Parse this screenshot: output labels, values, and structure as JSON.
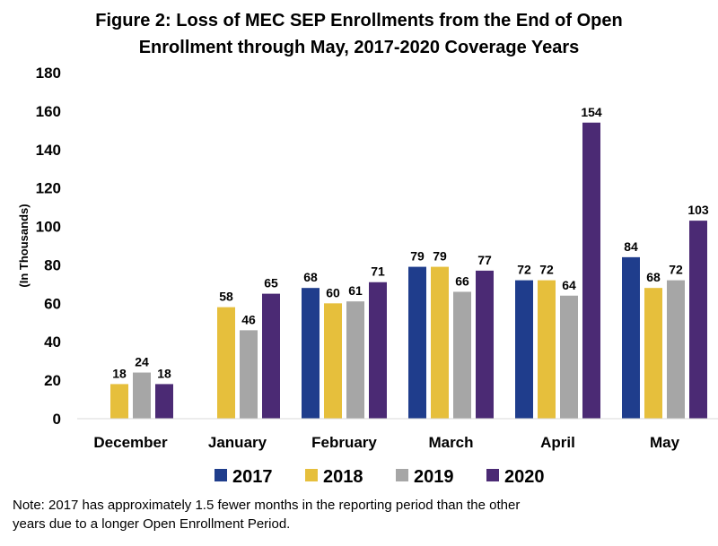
{
  "chart_data": {
    "type": "bar",
    "title_lines": [
      "Figure 2: Loss of MEC SEP Enrollments from the End of Open",
      "Enrollment through May, 2017-2020 Coverage Years"
    ],
    "ylabel": "(In Thousands)",
    "xlabel": "",
    "ylim": [
      0,
      180
    ],
    "yticks": [
      0,
      20,
      40,
      60,
      80,
      100,
      120,
      140,
      160,
      180
    ],
    "grid": false,
    "legend_position": "bottom",
    "categories": [
      "December",
      "January",
      "February",
      "March",
      "April",
      "May"
    ],
    "series": [
      {
        "name": "2017",
        "color": "#1f3d8c",
        "values": [
          null,
          null,
          68,
          79,
          72,
          84
        ]
      },
      {
        "name": "2018",
        "color": "#e6bf3c",
        "values": [
          18,
          58,
          60,
          79,
          72,
          68
        ]
      },
      {
        "name": "2019",
        "color": "#a6a6a6",
        "values": [
          24,
          46,
          61,
          66,
          64,
          72
        ]
      },
      {
        "name": "2020",
        "color": "#4b2a74",
        "values": [
          18,
          65,
          71,
          77,
          154,
          103
        ]
      }
    ]
  },
  "note": {
    "line1": "Note: 2017 has approximately 1.5 fewer months in the reporting period than the other",
    "line2": "years due to a longer Open Enrollment Period."
  }
}
